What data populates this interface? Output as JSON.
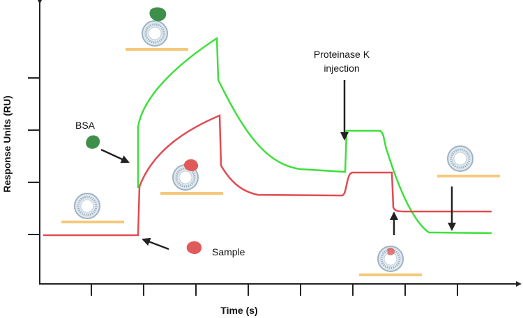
{
  "axes": {
    "y_label": "Response Units (RU)",
    "x_label": "Time (s)"
  },
  "annotations": {
    "bsa": "BSA",
    "sample": "Sample",
    "proteinase_line1": "Proteinase K",
    "proteinase_line2": "injection"
  }
}
